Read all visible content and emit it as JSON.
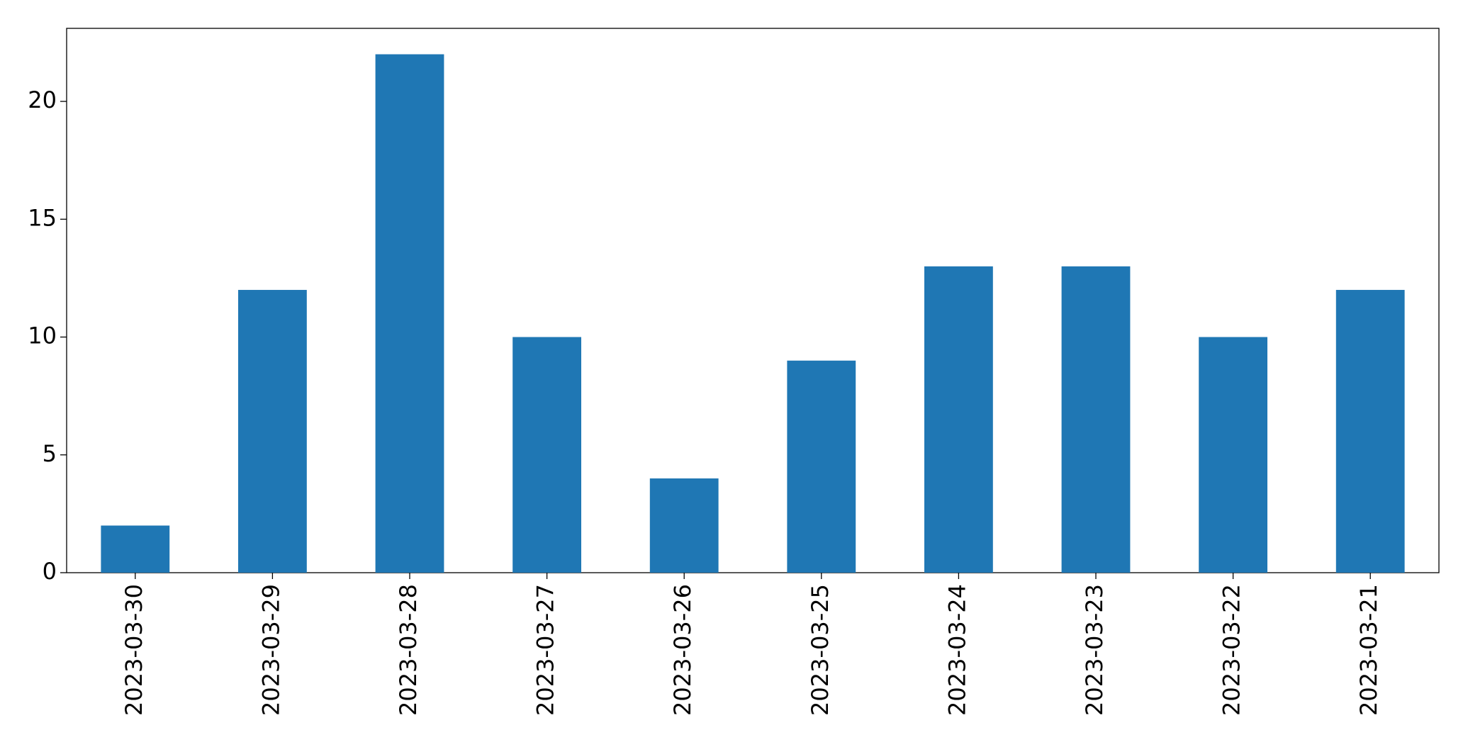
{
  "chart_data": {
    "type": "bar",
    "categories": [
      "2023-03-30",
      "2023-03-29",
      "2023-03-28",
      "2023-03-27",
      "2023-03-26",
      "2023-03-25",
      "2023-03-24",
      "2023-03-23",
      "2023-03-22",
      "2023-03-21"
    ],
    "values": [
      2,
      12,
      22,
      10,
      4,
      9,
      13,
      13,
      10,
      12
    ],
    "color": "#1f77b4",
    "ylim": [
      0,
      23.1
    ],
    "yticks": [
      0,
      5,
      10,
      15,
      20
    ],
    "grid": false
  }
}
